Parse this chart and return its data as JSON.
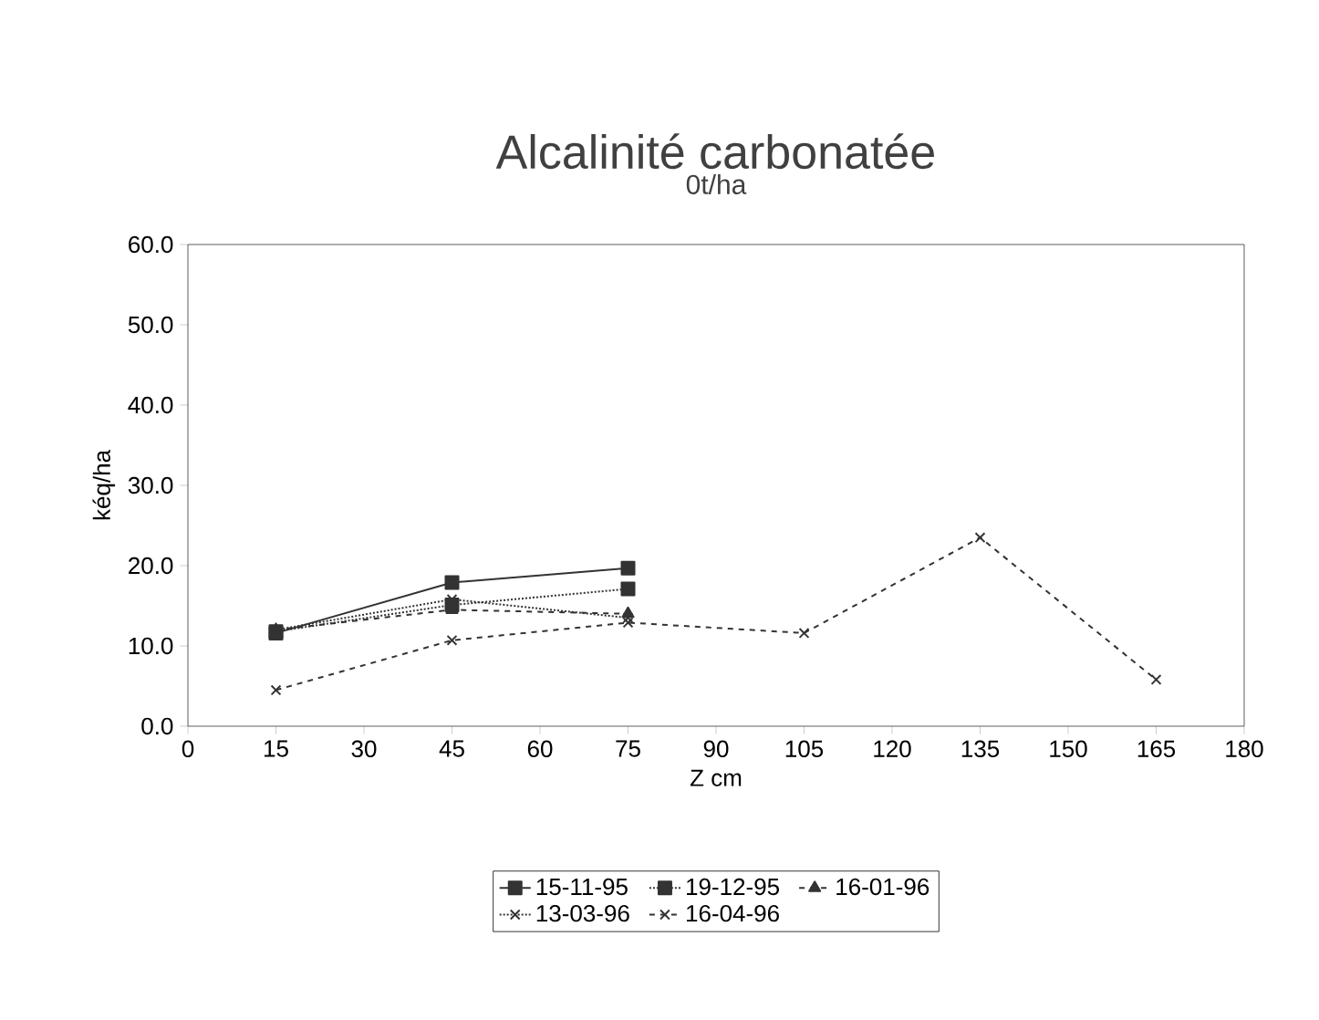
{
  "chart_data": {
    "type": "line",
    "title": "Alcalinité carbonatée",
    "subtitle": "0t/ha",
    "xlabel": "Z cm",
    "ylabel": "kéq/ha",
    "xlim": [
      0,
      180
    ],
    "xticks": [
      0,
      15,
      30,
      45,
      60,
      75,
      90,
      105,
      120,
      135,
      150,
      165,
      180
    ],
    "ylim": [
      0,
      60
    ],
    "yticks": [
      {
        "value": 0,
        "label": "0.0"
      },
      {
        "value": 10,
        "label": "10.0"
      },
      {
        "value": 20,
        "label": "20.0"
      },
      {
        "value": 30,
        "label": "30.0"
      },
      {
        "value": 40,
        "label": "40.0"
      },
      {
        "value": 50,
        "label": "50.0"
      },
      {
        "value": 60,
        "label": "60.0"
      }
    ],
    "grid": false,
    "legend": "bottom",
    "series": [
      {
        "name": "15-11-95",
        "color": "#333333",
        "marker": "square",
        "line_style": "solid",
        "x": [
          15,
          45,
          75
        ],
        "values": [
          11.6,
          17.9,
          19.7
        ]
      },
      {
        "name": "19-12-95",
        "color": "#333333",
        "marker": "square",
        "line_style": "dotted",
        "x": [
          15,
          45,
          75
        ],
        "values": [
          11.8,
          15.1,
          17.1
        ]
      },
      {
        "name": "16-01-96",
        "color": "#333333",
        "marker": "triangle",
        "line_style": "dashed",
        "x": [
          15,
          45,
          75
        ],
        "values": [
          12.0,
          14.5,
          14.0
        ]
      },
      {
        "name": "13-03-96",
        "color": "#333333",
        "marker": "cross",
        "line_style": "dotted",
        "x": [
          15,
          45,
          75
        ],
        "values": [
          12.0,
          15.8,
          13.5
        ]
      },
      {
        "name": "16-04-96",
        "color": "#333333",
        "marker": "cross",
        "line_style": "dashed",
        "x": [
          15,
          45,
          75,
          105,
          135,
          165
        ],
        "values": [
          4.5,
          10.7,
          12.9,
          11.6,
          23.5,
          5.8
        ]
      }
    ]
  }
}
